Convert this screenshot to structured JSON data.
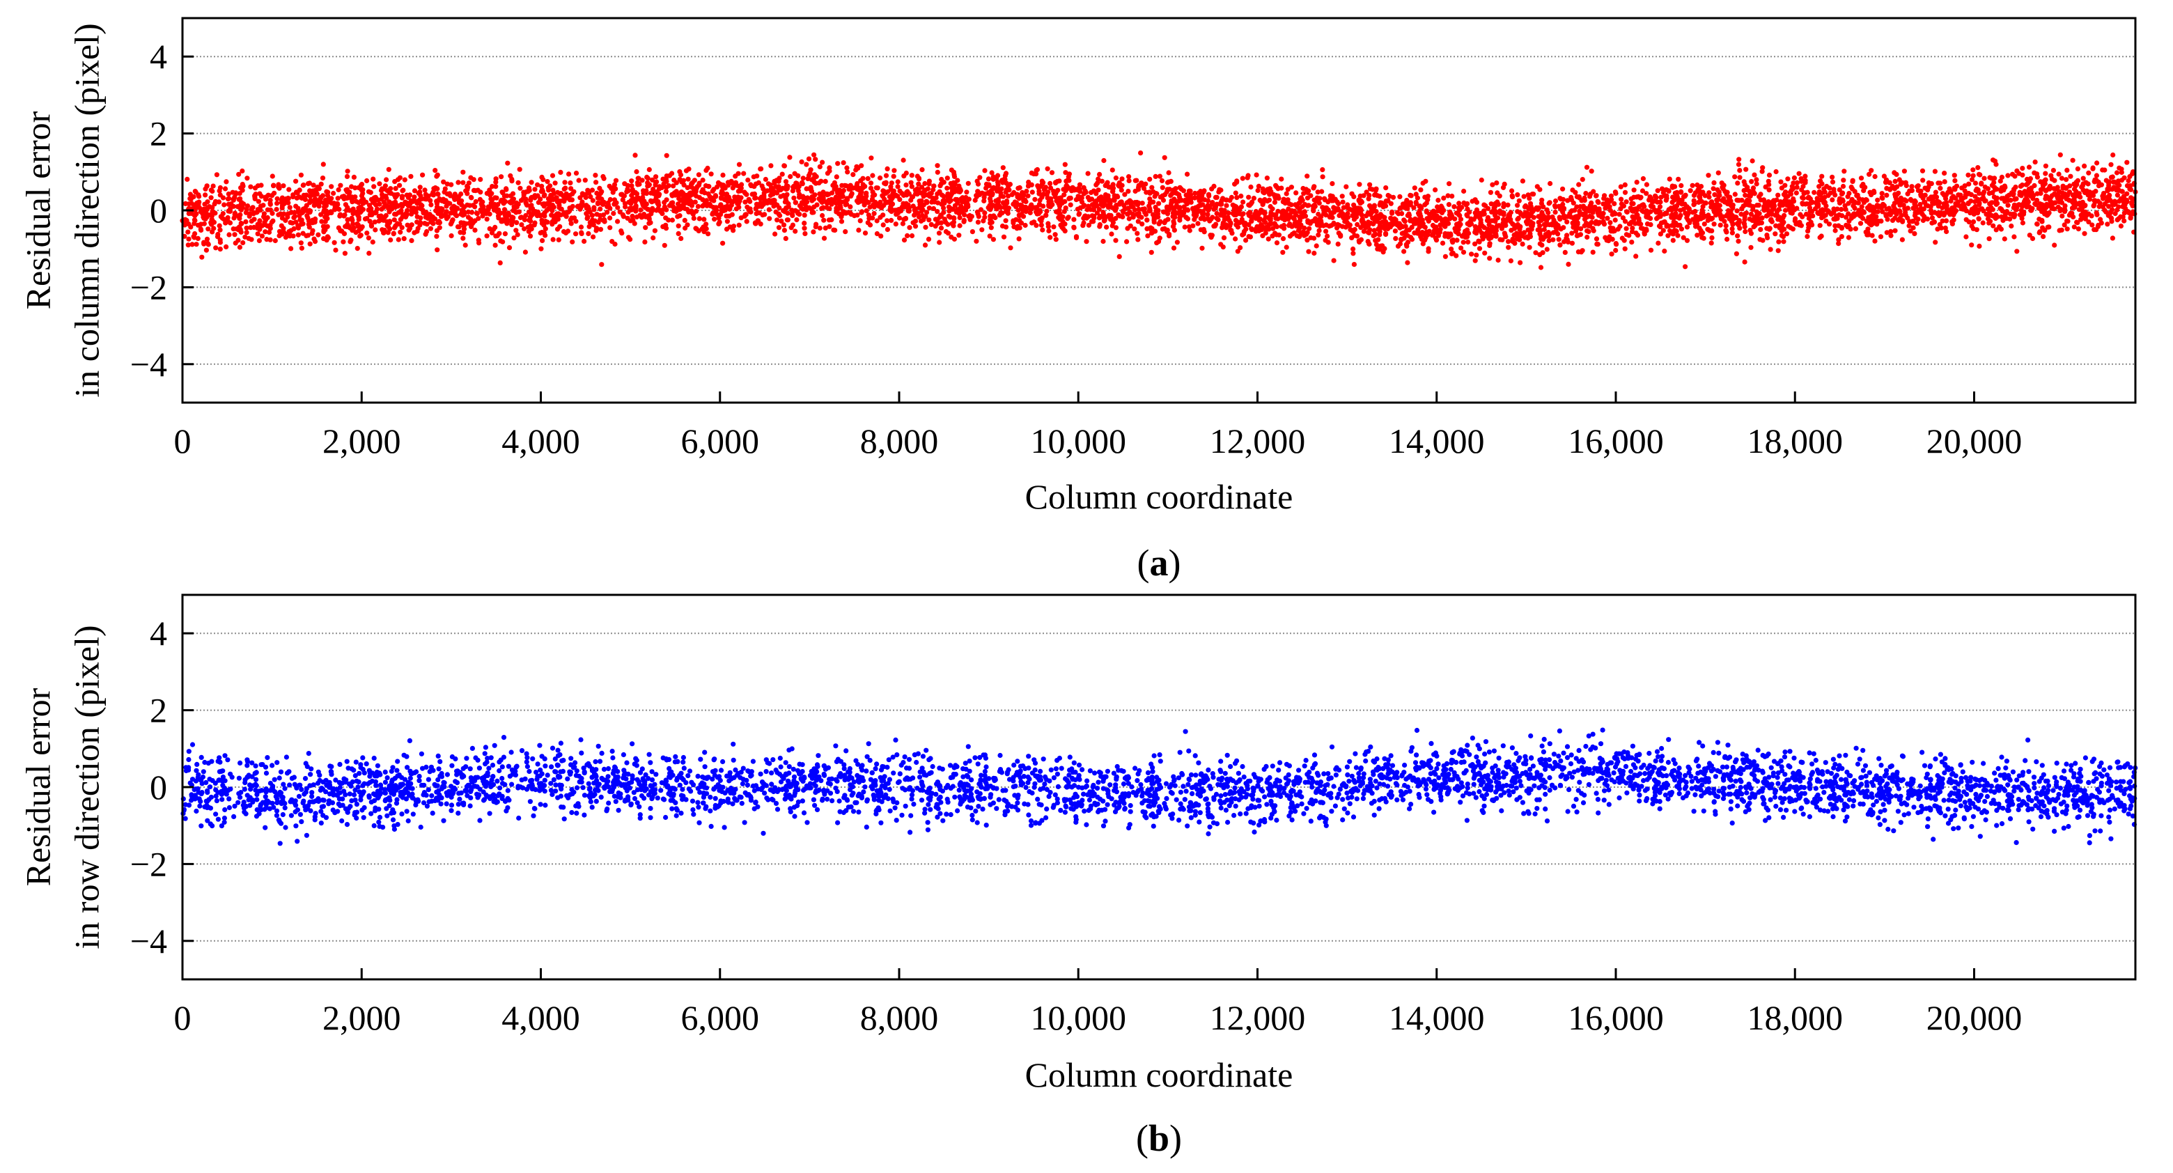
{
  "chart_data": [
    {
      "type": "scatter",
      "panel_label": "a",
      "title": "",
      "xlabel": "Column coordinate",
      "ylabel_lines": [
        "Residual error",
        "in column direction (pixel)"
      ],
      "xlim": [
        0,
        21800
      ],
      "ylim": [
        -5,
        5
      ],
      "xticks": [
        0,
        2000,
        4000,
        6000,
        8000,
        10000,
        12000,
        14000,
        16000,
        18000,
        20000
      ],
      "xtick_labels": [
        "0",
        "2,000",
        "4,000",
        "6,000",
        "8,000",
        "10,000",
        "12,000",
        "14,000",
        "16,000",
        "18,000",
        "20,000"
      ],
      "yticks": [
        4,
        2,
        0,
        -2,
        -4
      ],
      "ytick_labels": [
        "4",
        "2",
        "0",
        "−2",
        "−4"
      ],
      "grid": "horizontal dotted at y ticks",
      "series": [
        {
          "name": "Residual error in column direction",
          "color": "#ff0000",
          "n_points": 6000,
          "noise_sd": 0.42,
          "trend": [
            {
              "x": 0,
              "y": -0.1
            },
            {
              "x": 2000,
              "y": 0.0
            },
            {
              "x": 4000,
              "y": 0.1
            },
            {
              "x": 6000,
              "y": 0.25
            },
            {
              "x": 7000,
              "y": 0.35
            },
            {
              "x": 8000,
              "y": 0.2
            },
            {
              "x": 10000,
              "y": 0.15
            },
            {
              "x": 11000,
              "y": 0.05
            },
            {
              "x": 12000,
              "y": -0.1
            },
            {
              "x": 14000,
              "y": -0.3
            },
            {
              "x": 15000,
              "y": -0.3
            },
            {
              "x": 16000,
              "y": -0.1
            },
            {
              "x": 18000,
              "y": 0.05
            },
            {
              "x": 20000,
              "y": 0.2
            },
            {
              "x": 21800,
              "y": 0.35
            }
          ],
          "range_observed": [
            -1.5,
            1.5
          ]
        }
      ]
    },
    {
      "type": "scatter",
      "panel_label": "b",
      "title": "",
      "xlabel": "Column coordinate",
      "ylabel_lines": [
        "Residual error",
        "in row direction (pixel)"
      ],
      "xlim": [
        0,
        21800
      ],
      "ylim": [
        -5,
        5
      ],
      "xticks": [
        0,
        2000,
        4000,
        6000,
        8000,
        10000,
        12000,
        14000,
        16000,
        18000,
        20000
      ],
      "xtick_labels": [
        "0",
        "2,000",
        "4,000",
        "6,000",
        "8,000",
        "10,000",
        "12,000",
        "14,000",
        "16,000",
        "18,000",
        "20,000"
      ],
      "yticks": [
        4,
        2,
        0,
        -2,
        -4
      ],
      "ytick_labels": [
        "4",
        "2",
        "0",
        "−2",
        "−4"
      ],
      "grid": "horizontal dotted at y ticks",
      "series": [
        {
          "name": "Residual error in row direction",
          "color": "#0000ff",
          "n_points": 4000,
          "noise_sd": 0.42,
          "trend": [
            {
              "x": 0,
              "y": 0.0
            },
            {
              "x": 1000,
              "y": -0.2
            },
            {
              "x": 2000,
              "y": -0.15
            },
            {
              "x": 4000,
              "y": 0.2
            },
            {
              "x": 6000,
              "y": 0.0
            },
            {
              "x": 8000,
              "y": 0.05
            },
            {
              "x": 10000,
              "y": -0.1
            },
            {
              "x": 12000,
              "y": -0.15
            },
            {
              "x": 14000,
              "y": 0.25
            },
            {
              "x": 15000,
              "y": 0.3
            },
            {
              "x": 16000,
              "y": 0.3
            },
            {
              "x": 18000,
              "y": 0.0
            },
            {
              "x": 20000,
              "y": -0.1
            },
            {
              "x": 21800,
              "y": -0.2
            }
          ],
          "range_observed": [
            -1.5,
            1.5
          ]
        }
      ]
    }
  ],
  "captions": [
    "a",
    "b"
  ]
}
